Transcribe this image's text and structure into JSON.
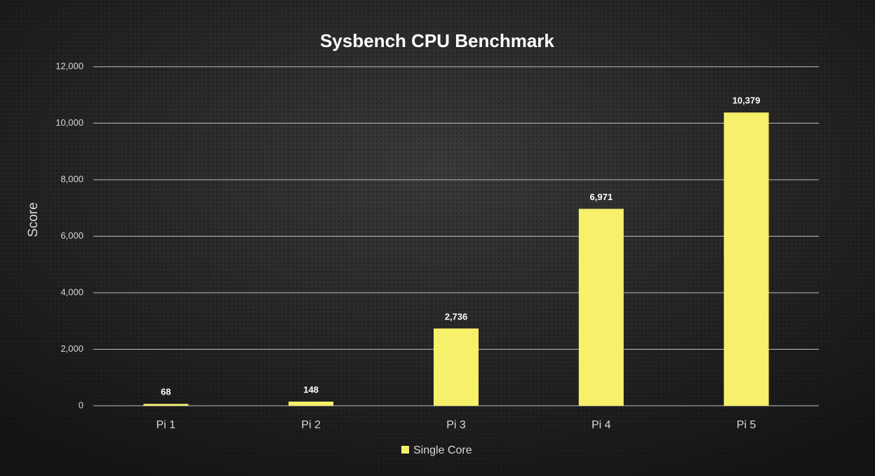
{
  "chart_data": {
    "type": "bar",
    "title": "Sysbench CPU Benchmark",
    "y_label": "Score",
    "categories": [
      "Pi 1",
      "Pi 2",
      "Pi 3",
      "Pi 4",
      "Pi 5"
    ],
    "series": [
      {
        "name": "Single Core",
        "color": "#f6f06a",
        "values": [
          68,
          148,
          2736,
          6971,
          10379
        ],
        "value_labels": [
          "68",
          "148",
          "2,736",
          "6,971",
          "10,379"
        ]
      }
    ],
    "ylim": [
      0,
      12000
    ],
    "yticks": [
      0,
      {
        "value": 2000,
        "label": "2,000"
      },
      {
        "value": 4000,
        "label": "4,000"
      },
      {
        "value": 6000,
        "label": "6,000"
      },
      {
        "value": 8000,
        "label": "8,000"
      },
      {
        "value": 10000,
        "label": "10,000"
      },
      {
        "value": 12000,
        "label": "12,000"
      }
    ],
    "grid": true,
    "legend": "bottom"
  }
}
